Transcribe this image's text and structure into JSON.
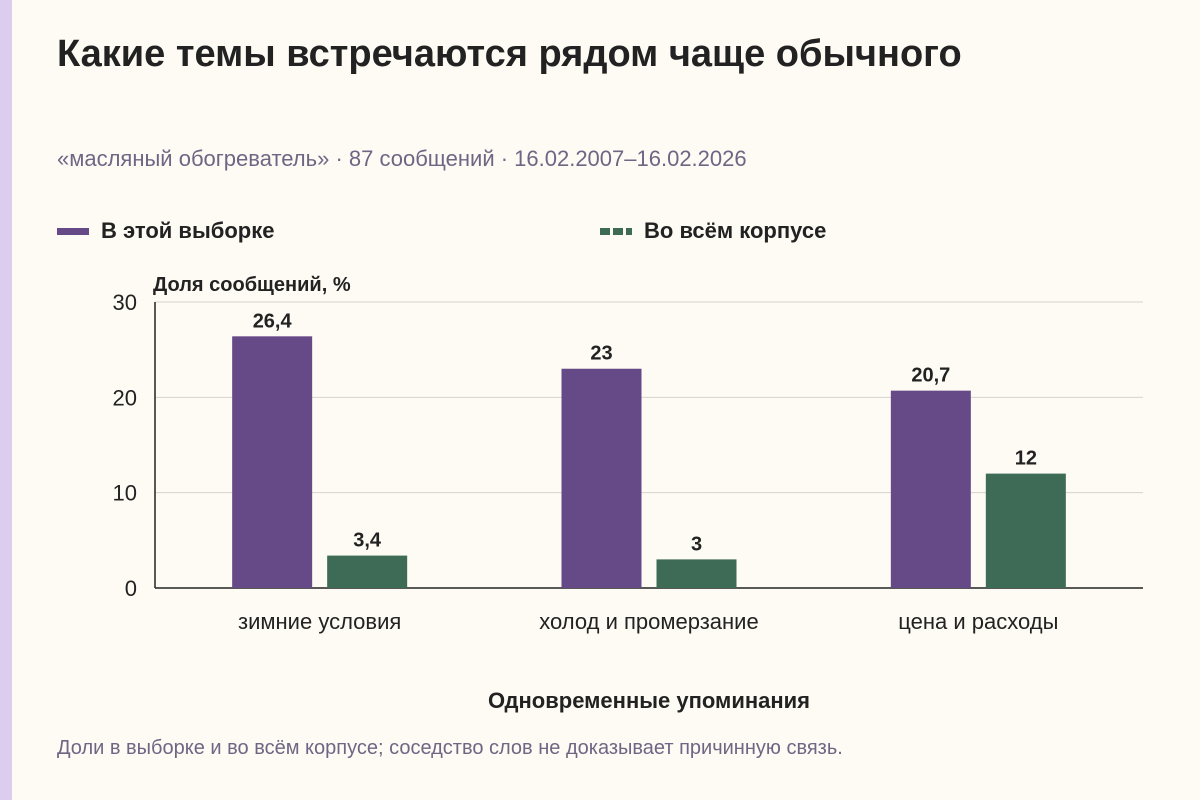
{
  "title": "Какие темы встречаются рядом чаще обычного",
  "subtitle": "«масляный обогреватель» · 87 сообщений · 16.02.2007–16.02.2026",
  "footnote": "Доли в выборке и во всём корпусе; соседство слов не доказывает причинную связь.",
  "colors": {
    "background": "#fdfbf3",
    "accent_bar": "#dccdf0",
    "sample": "#664987",
    "corpus": "#3e6b55"
  },
  "chart_data": {
    "type": "bar",
    "categories": [
      "зимние условия",
      "холод и промерзание",
      "цена и расходы"
    ],
    "series": [
      {
        "name": "В этой выборке",
        "values": [
          26.4,
          23,
          20.7
        ],
        "labels": [
          "26,4",
          "23",
          "20,7"
        ],
        "color": "#664987"
      },
      {
        "name": "Во всём корпусе",
        "values": [
          3.4,
          3,
          12
        ],
        "labels": [
          "3,4",
          "3",
          "12"
        ],
        "color": "#3e6b55"
      }
    ],
    "ylabel": "Доля сообщений, %",
    "xlabel": "Одновременные упоминания",
    "ylim": [
      0,
      30
    ],
    "yticks": [
      0,
      10,
      20,
      30
    ],
    "grid": true,
    "legend_position": "top-left"
  }
}
